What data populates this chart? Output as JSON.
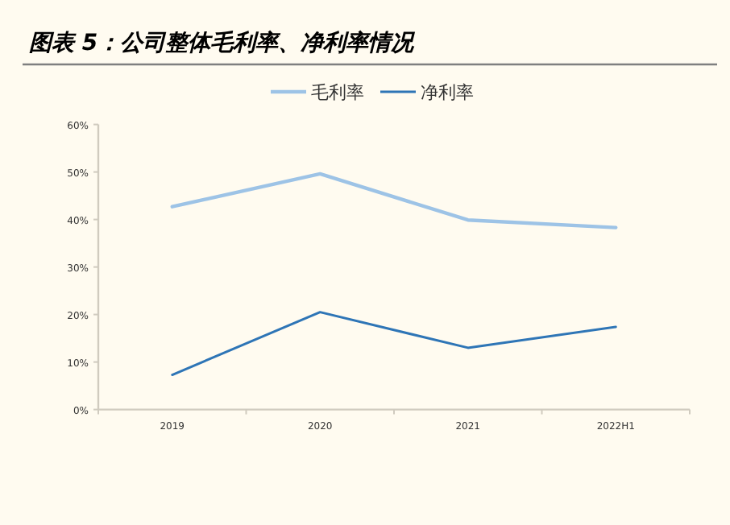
{
  "chart_data": {
    "type": "line",
    "title": "图表 5：公司整体毛利率、净利率情况",
    "categories": [
      "2019",
      "2020",
      "2021",
      "2022H1"
    ],
    "series": [
      {
        "name": "毛利率",
        "color": "#9dc3e6",
        "values": [
          42.7,
          49.6,
          39.9,
          38.3
        ]
      },
      {
        "name": "净利率",
        "color": "#2e75b6",
        "values": [
          7.3,
          20.5,
          13.0,
          17.4
        ]
      }
    ],
    "ylim": [
      0,
      60
    ],
    "yticks": [
      {
        "value": 0,
        "label": "0%"
      },
      {
        "value": 10,
        "label": "10%"
      },
      {
        "value": 20,
        "label": "20%"
      },
      {
        "value": 30,
        "label": "30%"
      },
      {
        "value": 40,
        "label": "40%"
      },
      {
        "value": 50,
        "label": "50%"
      },
      {
        "value": 60,
        "label": "60%"
      }
    ],
    "legend": "top",
    "grid": false
  }
}
